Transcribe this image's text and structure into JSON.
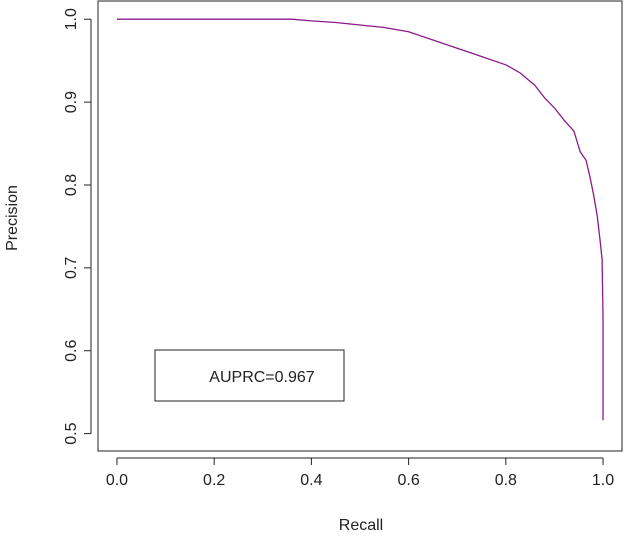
{
  "chart_data": {
    "type": "line",
    "xlabel": "Recall",
    "ylabel": "Precision",
    "annotation": "AUPRC=0.967",
    "color": "#8b1a8b",
    "x": [
      0,
      0.36,
      0.4,
      0.45,
      0.5,
      0.55,
      0.6,
      0.65,
      0.7,
      0.75,
      0.8,
      0.83,
      0.86,
      0.88,
      0.9,
      0.92,
      0.94,
      0.953,
      0.965,
      0.973,
      0.98,
      0.988,
      0.994,
      0.998,
      1.0,
      1.0
    ],
    "values": [
      1,
      1,
      0.998,
      0.996,
      0.993,
      0.99,
      0.985,
      0.975,
      0.965,
      0.955,
      0.945,
      0.935,
      0.92,
      0.905,
      0.893,
      0.878,
      0.865,
      0.84,
      0.83,
      0.81,
      0.79,
      0.763,
      0.733,
      0.71,
      0.64,
      0.516
    ],
    "xlim": [
      -0.039,
      1.039
    ],
    "ylim": [
      0.479,
      1.022
    ],
    "xticks": [
      {
        "value": 0,
        "label": "0.0"
      },
      0.2,
      0.4,
      0.6,
      0.8,
      {
        "value": 1,
        "label": "1.0"
      }
    ],
    "yticks": [
      0.5,
      0.6,
      0.7,
      0.8,
      0.9,
      {
        "value": 1,
        "label": "1.0"
      }
    ]
  }
}
